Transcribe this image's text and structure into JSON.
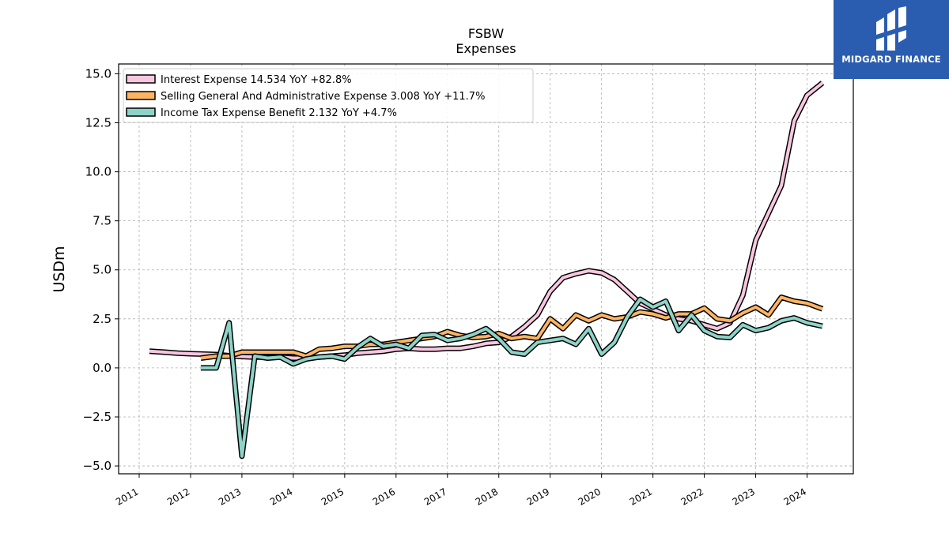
{
  "logo": {
    "text": "MIDGARD FINANCE",
    "icon": "midgard-logo-icon",
    "background": "#2a5db0"
  },
  "chart_data": {
    "type": "line",
    "title": "FSBW",
    "subtitle": "Expenses",
    "xlabel": "",
    "ylabel": "USDm",
    "xlim": [
      2010.6,
      2024.9
    ],
    "ylim": [
      -5.4,
      15.5
    ],
    "yticks": [
      -5.0,
      -2.5,
      0.0,
      2.5,
      5.0,
      7.5,
      10.0,
      12.5,
      15.0
    ],
    "ytick_labels": [
      "−5.0",
      "−2.5",
      "0.0",
      "2.5",
      "5.0",
      "7.5",
      "10.0",
      "12.5",
      "15.0"
    ],
    "xticks": [
      2011,
      2012,
      2013,
      2014,
      2015,
      2016,
      2017,
      2018,
      2019,
      2020,
      2021,
      2022,
      2023,
      2024
    ],
    "xtick_labels": [
      "2011",
      "2012",
      "2013",
      "2014",
      "2015",
      "2016",
      "2017",
      "2018",
      "2019",
      "2020",
      "2021",
      "2022",
      "2023",
      "2024"
    ],
    "grid": true,
    "legend_position": "top-left",
    "series": [
      {
        "name": "Interest Expense",
        "legend": "Interest Expense  14.534 YoY +82.8%",
        "color": "#f9c6df",
        "x": [
          2011.2,
          2011.5,
          2011.75,
          2012.0,
          2012.25,
          2012.5,
          2012.75,
          2013.0,
          2013.25,
          2013.5,
          2013.75,
          2014.0,
          2014.25,
          2014.5,
          2014.75,
          2015.0,
          2015.25,
          2015.5,
          2015.75,
          2016.0,
          2016.25,
          2016.5,
          2016.75,
          2017.0,
          2017.25,
          2017.5,
          2017.75,
          2018.0,
          2018.25,
          2018.5,
          2018.75,
          2019.0,
          2019.25,
          2019.5,
          2019.75,
          2020.0,
          2020.25,
          2020.5,
          2020.75,
          2021.0,
          2021.25,
          2021.5,
          2021.75,
          2022.0,
          2022.25,
          2022.5,
          2022.75,
          2023.0,
          2023.25,
          2023.5,
          2023.75,
          2024.0,
          2024.3
        ],
        "values": [
          0.85,
          0.8,
          0.75,
          0.72,
          0.7,
          0.68,
          0.62,
          0.58,
          0.55,
          0.55,
          0.55,
          0.5,
          0.5,
          0.55,
          0.6,
          0.65,
          0.75,
          0.8,
          0.85,
          0.95,
          1.0,
          0.95,
          0.95,
          1.0,
          1.0,
          1.1,
          1.25,
          1.3,
          1.6,
          2.1,
          2.7,
          3.9,
          4.6,
          4.8,
          4.95,
          4.85,
          4.5,
          3.9,
          3.3,
          3.0,
          2.7,
          2.5,
          2.4,
          2.2,
          2.0,
          2.3,
          3.7,
          6.5,
          7.9,
          9.3,
          12.6,
          13.9,
          14.534
        ]
      },
      {
        "name": "Selling General And Administrative Expense",
        "legend": "Selling General And Administrative Expense  3.008 YoY +11.7%",
        "color": "#fdb462",
        "x": [
          2012.2,
          2012.5,
          2012.75,
          2013.0,
          2013.25,
          2013.5,
          2013.75,
          2014.0,
          2014.25,
          2014.5,
          2014.75,
          2015.0,
          2015.25,
          2015.5,
          2015.75,
          2016.0,
          2016.25,
          2016.5,
          2016.75,
          2017.0,
          2017.25,
          2017.5,
          2017.75,
          2018.0,
          2018.25,
          2018.5,
          2018.75,
          2019.0,
          2019.25,
          2019.5,
          2019.75,
          2020.0,
          2020.25,
          2020.5,
          2020.75,
          2021.0,
          2021.25,
          2021.5,
          2021.75,
          2022.0,
          2022.25,
          2022.5,
          2022.75,
          2023.0,
          2023.25,
          2023.5,
          2023.75,
          2024.0,
          2024.3
        ],
        "values": [
          0.5,
          0.6,
          0.6,
          0.8,
          0.8,
          0.8,
          0.8,
          0.8,
          0.6,
          0.95,
          1.0,
          1.1,
          1.1,
          1.2,
          1.2,
          1.3,
          1.4,
          1.5,
          1.6,
          1.85,
          1.65,
          1.55,
          1.6,
          1.75,
          1.5,
          1.6,
          1.5,
          2.5,
          2.0,
          2.7,
          2.4,
          2.7,
          2.5,
          2.6,
          2.85,
          2.75,
          2.55,
          2.75,
          2.75,
          3.05,
          2.5,
          2.4,
          2.8,
          3.1,
          2.7,
          3.6,
          3.4,
          3.3,
          3.008
        ]
      },
      {
        "name": "Income Tax Expense Benefit",
        "legend": "Income Tax Expense Benefit  2.132 YoY +4.7%",
        "color": "#8dd3c7",
        "x": [
          2012.2,
          2012.5,
          2012.75,
          2013.0,
          2013.25,
          2013.5,
          2013.75,
          2014.0,
          2014.25,
          2014.5,
          2014.75,
          2015.0,
          2015.25,
          2015.5,
          2015.75,
          2016.0,
          2016.25,
          2016.5,
          2016.75,
          2017.0,
          2017.25,
          2017.5,
          2017.75,
          2018.0,
          2018.25,
          2018.5,
          2018.75,
          2019.0,
          2019.25,
          2019.5,
          2019.75,
          2020.0,
          2020.25,
          2020.5,
          2020.75,
          2021.0,
          2021.25,
          2021.5,
          2021.75,
          2022.0,
          2022.25,
          2022.5,
          2022.75,
          2023.0,
          2023.25,
          2023.5,
          2023.75,
          2024.0,
          2024.3
        ],
        "values": [
          0.0,
          0.0,
          2.3,
          -4.5,
          0.6,
          0.5,
          0.55,
          0.2,
          0.45,
          0.55,
          0.6,
          0.45,
          1.05,
          1.5,
          1.1,
          1.2,
          1.0,
          1.65,
          1.7,
          1.4,
          1.5,
          1.7,
          2.0,
          1.5,
          0.8,
          0.7,
          1.3,
          1.4,
          1.5,
          1.2,
          2.0,
          0.7,
          1.3,
          2.6,
          3.5,
          3.1,
          3.4,
          1.9,
          2.7,
          1.9,
          1.6,
          1.55,
          2.2,
          1.9,
          2.05,
          2.4,
          2.55,
          2.3,
          2.132
        ]
      }
    ]
  }
}
